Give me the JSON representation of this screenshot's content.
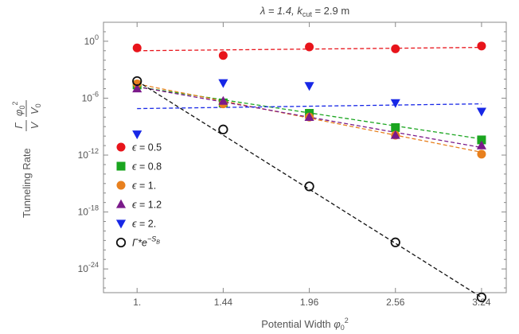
{
  "chart_data": {
    "type": "scatter",
    "title": "λ = 1.4, k_cut = 2.9 m",
    "title_parts": {
      "lambda": "λ = 1.4, ",
      "k": "k",
      "k_sub": "cut",
      "k_rest": " = 2.9 m"
    },
    "xlabel": "Potential Width φ₀²",
    "xlabel_parts": {
      "text": "Potential Width ",
      "sym": "φ",
      "sub": "0",
      "sup": "2"
    },
    "ylabel": "Tunneling Rate (Γ/V)(φ₀²/V₀)",
    "ylabel_parts": {
      "text": "Tunneling Rate ",
      "gamma": "Γ",
      "v": "V",
      "phi": "φ",
      "phi_sub": "0",
      "phi_sup": "2",
      "v0": "V",
      "v0_sub": "0"
    },
    "x_scale": "sqrt",
    "y_scale": "log10",
    "xlim": [
      0.85,
      3.45
    ],
    "ylim_log10": [
      -26.5,
      2
    ],
    "x_ticks": [
      {
        "value": 1.0,
        "label": "1."
      },
      {
        "value": 1.44,
        "label": "1.44"
      },
      {
        "value": 1.96,
        "label": "1.96"
      },
      {
        "value": 2.56,
        "label": "2.56"
      },
      {
        "value": 3.24,
        "label": "3.24"
      }
    ],
    "y_ticks": [
      {
        "value": 0,
        "base": "10",
        "exp": "0"
      },
      {
        "value": -6,
        "base": "10",
        "exp": "-6"
      },
      {
        "value": -12,
        "base": "10",
        "exp": "-12"
      },
      {
        "value": -18,
        "base": "10",
        "exp": "-18"
      },
      {
        "value": -24,
        "base": "10",
        "exp": "-24"
      }
    ],
    "x": [
      1.0,
      1.44,
      1.96,
      2.56,
      3.24
    ],
    "series": [
      {
        "name": "ϵ = 0.5",
        "sym": "ϵ",
        "rest": " = 0.5",
        "color": "#e8141b",
        "marker": "circle",
        "log10_values": [
          -0.7,
          -1.5,
          -0.6,
          -0.8,
          -0.5
        ],
        "fit_log10": [
          -1.0,
          -0.65
        ]
      },
      {
        "name": "ϵ = 0.8",
        "sym": "ϵ",
        "rest": " = 0.8",
        "color": "#1aa51f",
        "marker": "square",
        "log10_values": [
          -4.6,
          -6.5,
          -7.6,
          -9.1,
          -10.4
        ],
        "fit_log10": [
          -4.8,
          -10.3
        ]
      },
      {
        "name": "ϵ = 1.",
        "sym": "ϵ",
        "rest": " = 1.",
        "color": "#e8801e",
        "marker": "circle",
        "log10_values": [
          -4.5,
          -6.6,
          -8.0,
          -9.9,
          -11.9
        ],
        "fit_log10": [
          -4.5,
          -11.7
        ]
      },
      {
        "name": "ϵ = 1.2",
        "sym": "ϵ",
        "rest": " = 1.2",
        "color": "#7b1a8a",
        "marker": "triangle-up",
        "log10_values": [
          -5.0,
          -6.3,
          -8.0,
          -9.9,
          -11.0
        ],
        "fit_log10": [
          -4.8,
          -11.2
        ]
      },
      {
        "name": "ϵ = 2.",
        "sym": "ϵ",
        "rest": " = 2.",
        "color": "#1727e6",
        "marker": "triangle-down",
        "log10_values": [
          -9.8,
          -4.4,
          -4.7,
          -6.5,
          -7.4
        ],
        "fit_log10": [
          -7.1,
          -6.6
        ]
      },
      {
        "name": "Γ*e^(-S_B)",
        "sym": "Γ*e",
        "sup": "−S",
        "sup_sub": "B",
        "color": "#111111",
        "marker": "circle-open",
        "log10_values": [
          -4.2,
          -9.3,
          -15.3,
          -21.2,
          -27.0
        ],
        "fit_log10": [
          -4.2,
          -27.0
        ]
      }
    ],
    "legend_placement": "lower-left inside",
    "grid": false
  }
}
